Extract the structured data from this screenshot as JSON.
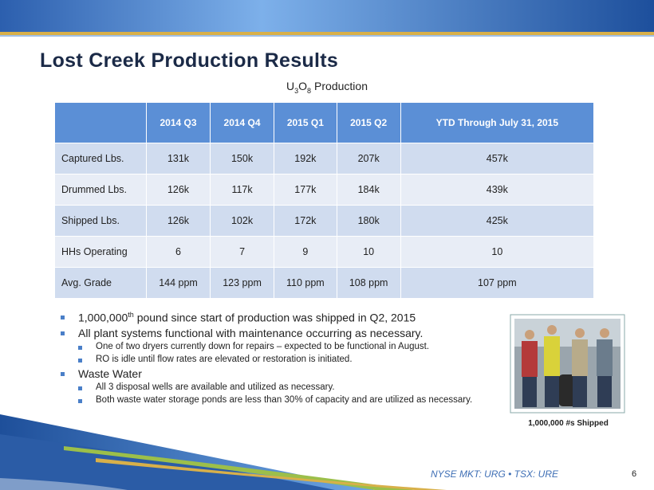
{
  "header": {
    "title": "Lost Creek Production Results",
    "subtitle": [
      "U",
      "3",
      "O",
      "8",
      "Production"
    ]
  },
  "table": {
    "columns": [
      "2014 Q3",
      "2014 Q4",
      "2015 Q1",
      "2015 Q2",
      "YTD Through July 31, 2015"
    ],
    "rows": [
      [
        "Captured Lbs.",
        "131k",
        "150k",
        "192k",
        "207k",
        "457k"
      ],
      [
        "Drummed Lbs.",
        "126k",
        "117k",
        "177k",
        "184k",
        "439k"
      ],
      [
        "Shipped Lbs.",
        "126k",
        "102k",
        "172k",
        "180k",
        "425k"
      ],
      [
        "HHs Operating",
        "6",
        "7",
        "9",
        "10",
        "10"
      ],
      [
        "Avg. Grade",
        "144 ppm",
        "123 ppm",
        "110 ppm",
        "108 ppm",
        "107 ppm"
      ]
    ]
  },
  "bullets": {
    "first": [
      "1,000,000",
      "th",
      "pound since start of production was shipped in Q2, 2015"
    ],
    "second": "All plant systems functional with maintenance occurring as necessary.",
    "second_sub": [
      "One of two dryers currently down for repairs – expected to be functional in August.",
      "RO is idle until flow rates are elevated or restoration is initiated."
    ],
    "third": "Waste Water",
    "third_sub": [
      "All 3 disposal wells are available and utilized as necessary.",
      "Both waste water storage ponds are less than 30% of capacity and are utilized as necessary."
    ]
  },
  "photo": {
    "caption": "1,000,000 #s Shipped"
  },
  "footer": {
    "text": "NYSE MKT: URG • TSX: URE",
    "page": "6"
  }
}
